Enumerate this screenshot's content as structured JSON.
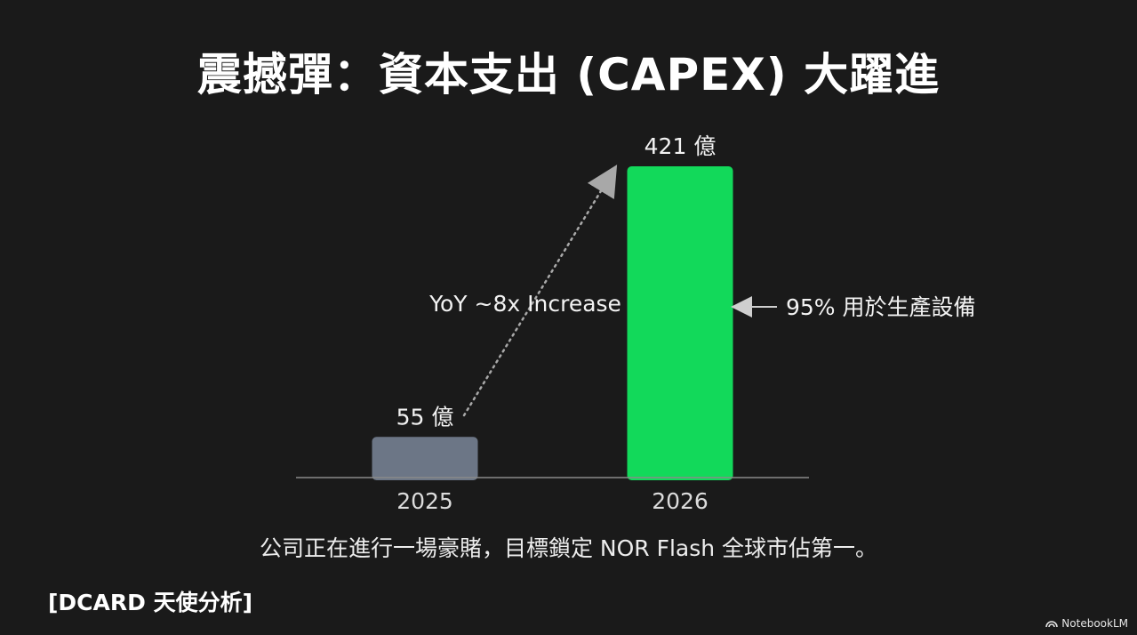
{
  "slide": {
    "title": "震撼彈：資本支出 (CAPEX) 大躍進",
    "caption": "公司正在進行一場豪賭，目標鎖定 NOR Flash 全球市佔第一。",
    "source_tag": "[DCARD 天使分析]",
    "brand_label": "NotebookLM",
    "brand_icon": "notebooklm-logo-icon"
  },
  "chart_data": {
    "type": "bar",
    "categories": [
      "2025",
      "2026"
    ],
    "values": [
      55,
      421
    ],
    "value_labels": [
      "55 億",
      "421 億"
    ],
    "ylim": [
      0,
      421
    ],
    "grid": false,
    "bar_colors": [
      "#6c7686",
      "#12d95a"
    ],
    "annotations": {
      "growth_arrow_label": "YoY ~8x Increase",
      "bar_side_label": "95% 用於生產設備"
    }
  },
  "colors": {
    "background": "#1a1a1a",
    "text": "#f2f2f2",
    "baseline": "#8a8a8a",
    "arrow": "#a8a8a8"
  }
}
